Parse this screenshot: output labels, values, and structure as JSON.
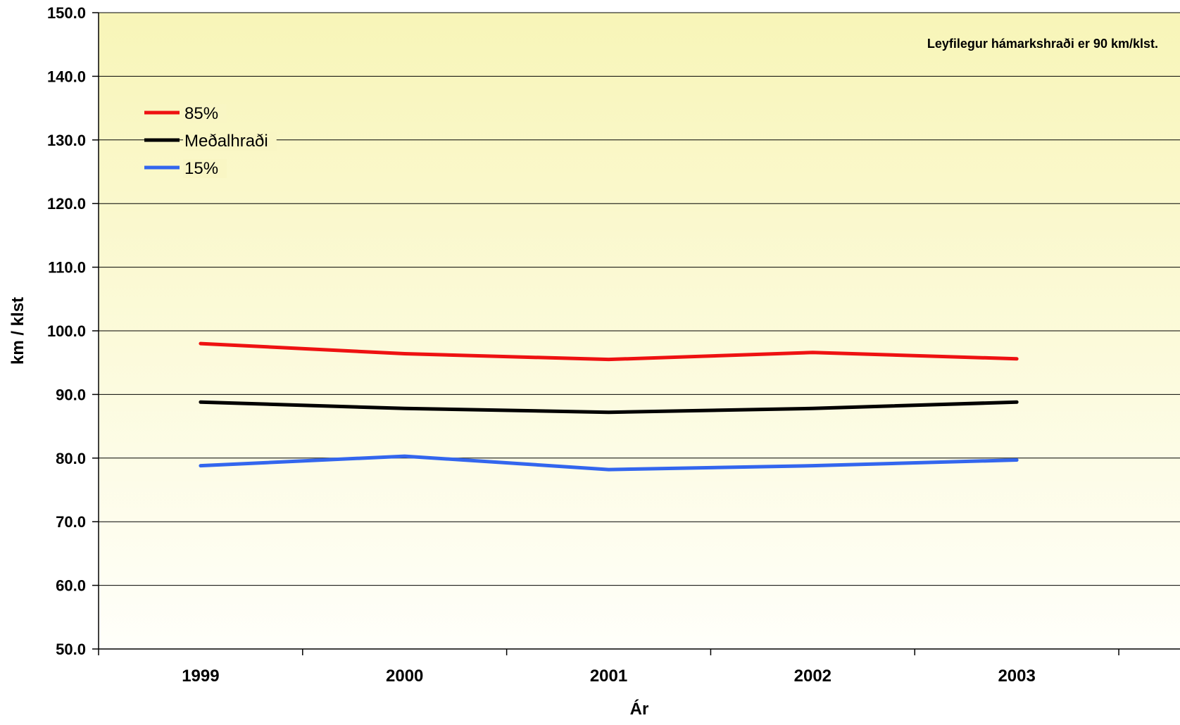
{
  "chart_data": {
    "type": "line",
    "title": "",
    "xlabel": "Ár",
    "ylabel": "km / klst",
    "annotation": "Leyfilegur hámarkshraði er 90 km/klst.",
    "categories": [
      "1999",
      "2000",
      "2001",
      "2002",
      "2003"
    ],
    "ylim": [
      50,
      150
    ],
    "yticks": [
      50,
      60,
      70,
      80,
      90,
      100,
      110,
      120,
      130,
      140,
      150
    ],
    "ytick_labels": [
      "50.0",
      "60.0",
      "70.0",
      "80.0",
      "90.0",
      "100.0",
      "110.0",
      "120.0",
      "130.0",
      "140.0",
      "150.0"
    ],
    "grid": true,
    "legend_position": "top-left",
    "series": [
      {
        "name": "85%",
        "color": "#ee1111",
        "values": [
          98.0,
          96.4,
          95.5,
          96.6,
          95.6
        ]
      },
      {
        "name": "Meðalhraði",
        "color": "#000000",
        "values": [
          88.8,
          87.8,
          87.2,
          87.8,
          88.8
        ]
      },
      {
        "name": "15%",
        "color": "#3366ee",
        "values": [
          78.8,
          80.3,
          78.2,
          78.8,
          79.7
        ]
      }
    ],
    "background_gradient": {
      "top": "#f8f5b8",
      "bottom": "#fffffa"
    }
  }
}
